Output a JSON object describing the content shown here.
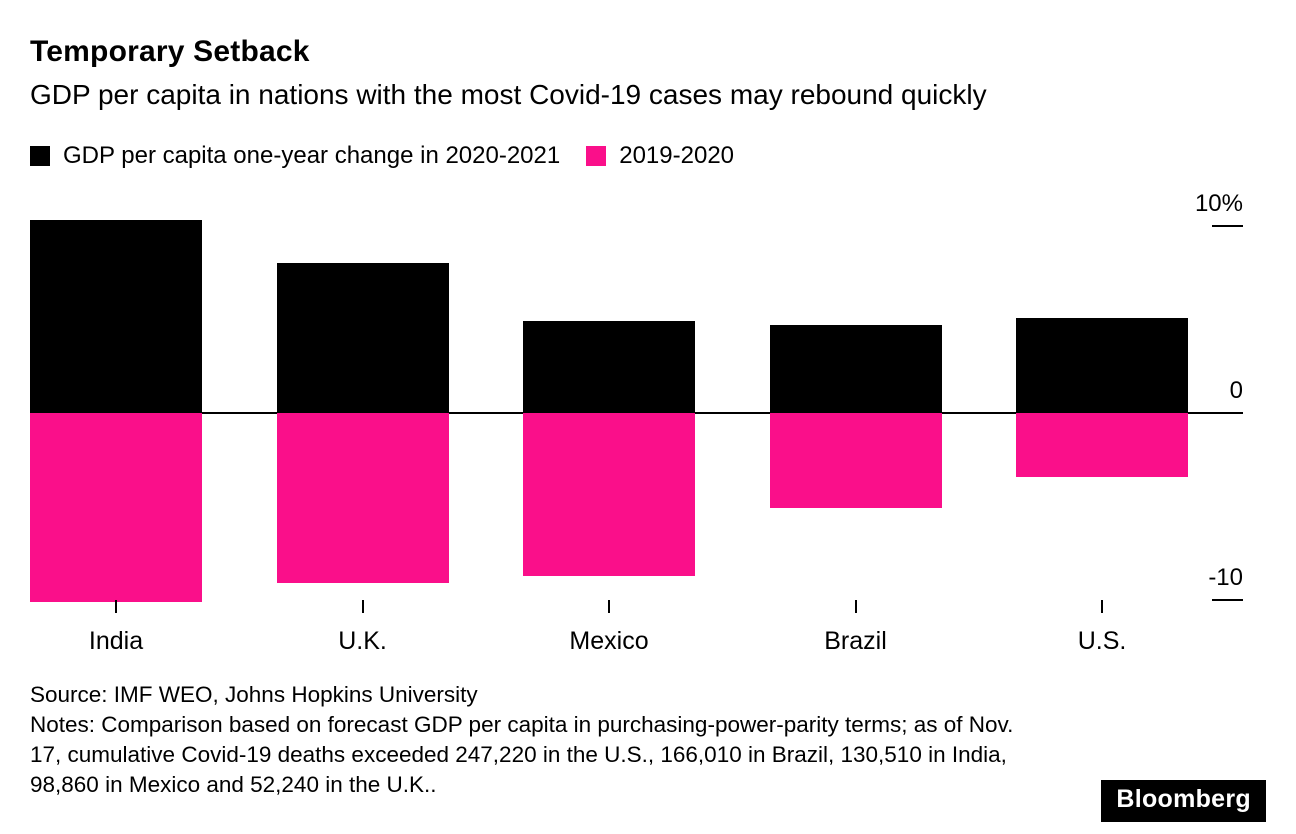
{
  "page": {
    "title": "Temporary Setback",
    "subtitle": "GDP per capita in nations with the most Covid-19 cases may rebound quickly",
    "source": "Source: IMF WEO, Johns Hopkins University",
    "notes": "Notes: Comparison based on forecast GDP per capita in purchasing-power-parity terms; as of Nov. 17, cumulative Covid-19 deaths exceeded 247,220 in the U.S., 166,010 in Brazil, 130,510 in India, 98,860 in Mexico and 52,240 in the U.K..",
    "brand": "Bloomberg"
  },
  "legend": [
    {
      "label": "GDP per capita one-year change in 2020-2021",
      "color": "#000000"
    },
    {
      "label": "2019-2020",
      "color": "#fa0f8a"
    }
  ],
  "chart_data": {
    "type": "bar",
    "title": "Temporary Setback",
    "subtitle": "GDP per capita in nations with the most Covid-19 cases may rebound quickly",
    "categories": [
      "India",
      "U.K.",
      "Mexico",
      "Brazil",
      "U.S."
    ],
    "series": [
      {
        "name": "GDP per capita one-year change in 2020-2021",
        "color": "#000000",
        "values": [
          10.3,
          8.0,
          4.9,
          4.7,
          5.1
        ]
      },
      {
        "name": "2019-2020",
        "color": "#fa0f8a",
        "values": [
          -10.1,
          -9.1,
          -8.7,
          -5.1,
          -3.4
        ]
      }
    ],
    "xlabel": "",
    "ylabel": "%",
    "ylim": [
      -11.6,
      11.6
    ],
    "yticks": [
      {
        "value": 10,
        "label": "10%"
      },
      {
        "value": 0,
        "label": "0"
      },
      {
        "value": -10,
        "label": "-10"
      }
    ],
    "grid": false,
    "legend_position": "top"
  }
}
